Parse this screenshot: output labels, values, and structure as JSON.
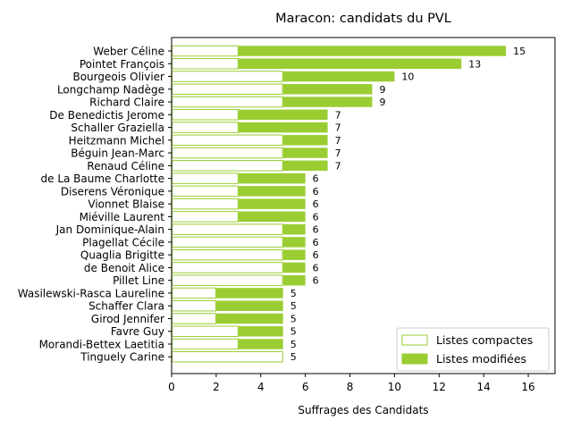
{
  "chart_data": {
    "type": "bar",
    "orientation": "horizontal",
    "stacked": true,
    "title": "Maracon: candidats du PVL",
    "xlabel": "Suffrages des Candidats",
    "ylabel": "",
    "xlim": [
      0,
      17.2
    ],
    "xticks": [
      0,
      2,
      4,
      6,
      8,
      10,
      12,
      14,
      16
    ],
    "grid": false,
    "legend_position": "lower-right",
    "colors": {
      "modified": "#9acd32",
      "compact_fill": "#ffffff",
      "compact_edge": "#9acd32"
    },
    "categories": [
      "Weber Céline",
      "Pointet François",
      "Bourgeois Olivier",
      "Longchamp Nadège",
      "Richard Claire",
      "De Benedictis Jerome",
      "Schaller Graziella",
      "Heitzmann Michel",
      "Béguin Jean-Marc",
      "Renaud Céline",
      "de La Baume Charlotte",
      "Diserens Véronique",
      "Vionnet Blaise",
      "Miéville Laurent",
      "Jan Dominique-Alain",
      "Plagellat Cécile",
      "Quaglia Brigitte",
      "de Benoit Alice",
      "Pillet Line",
      "Wasilewski-Rasca Laureline",
      "Schaffer Clara",
      "Girod Jennifer",
      "Favre Guy",
      "Morandi-Bettex Laetitia",
      "Tinguely Carine"
    ],
    "series": [
      {
        "name": "Listes compactes",
        "values": [
          3,
          3,
          5,
          5,
          5,
          3,
          3,
          5,
          5,
          5,
          3,
          3,
          3,
          3,
          5,
          5,
          5,
          5,
          5,
          2,
          2,
          2,
          3,
          3,
          5
        ]
      },
      {
        "name": "Listes modifiées",
        "values": [
          12,
          10,
          5,
          4,
          4,
          4,
          4,
          2,
          2,
          2,
          3,
          3,
          3,
          3,
          1,
          1,
          1,
          1,
          1,
          3,
          3,
          3,
          2,
          2,
          0
        ]
      }
    ],
    "totals": [
      15,
      13,
      10,
      9,
      9,
      7,
      7,
      7,
      7,
      7,
      6,
      6,
      6,
      6,
      6,
      6,
      6,
      6,
      6,
      5,
      5,
      5,
      5,
      5,
      5
    ]
  }
}
